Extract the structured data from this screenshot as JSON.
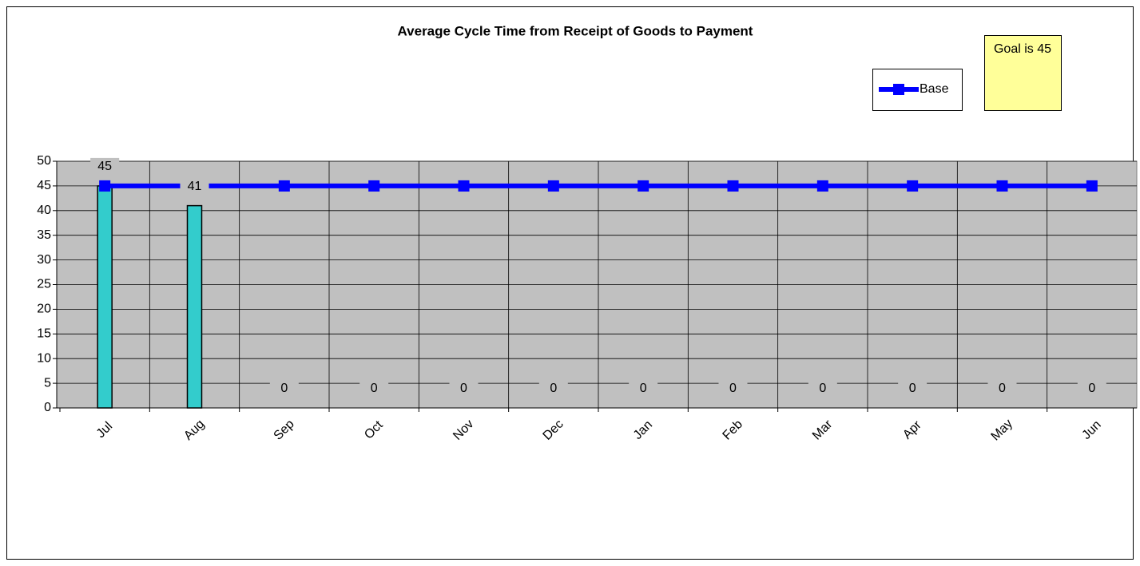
{
  "chart_data": {
    "type": "bar",
    "title": "Average Cycle Time from Receipt of Goods to Payment",
    "categories": [
      "Jul",
      "Aug",
      "Sep",
      "Oct",
      "Nov",
      "Dec",
      "Jan",
      "Feb",
      "Mar",
      "Apr",
      "May",
      "Jun"
    ],
    "values": [
      45,
      41,
      0,
      0,
      0,
      0,
      0,
      0,
      0,
      0,
      0,
      0
    ],
    "color": "#33cccc",
    "series": [
      {
        "name": "Base",
        "type": "line",
        "color": "#0000ff",
        "values": [
          45,
          45,
          45,
          45,
          45,
          45,
          45,
          45,
          45,
          45,
          45,
          45
        ]
      }
    ],
    "ylim": [
      0,
      50
    ],
    "yticks": [
      0,
      5,
      10,
      15,
      20,
      25,
      30,
      35,
      40,
      45,
      50
    ],
    "grid": true,
    "legend": "top-right",
    "annotation": "Goal is 45"
  }
}
